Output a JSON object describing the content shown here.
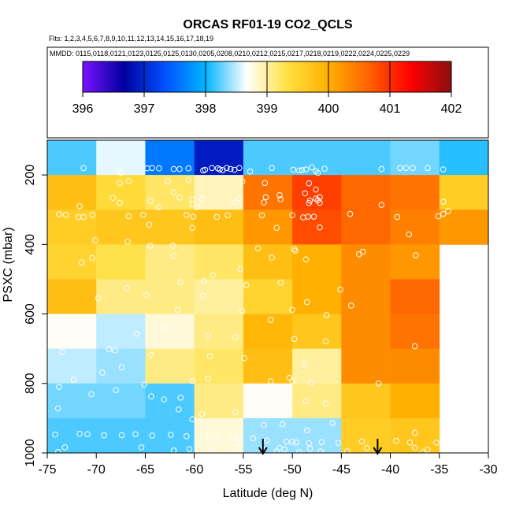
{
  "chart_data": {
    "type": "heatmap",
    "title": "ORCAS RF01-19 CO2_QCLS",
    "flights_label": "Flts: 1,2,3,4,5,6,7,8,9,10,11,12,13,14,15,16,17,18,19",
    "dates_label": "MMDD: 0115,0118,0121,0123,0125,0125,0130,0205,0208,0210,0212,0215,0217,0218,0219,0222,0224,0225,0229",
    "xlabel": "Latitude (deg N)",
    "ylabel": "PSXC (mbar)",
    "xlim": [
      -75,
      -30
    ],
    "ylim": [
      1000,
      100
    ],
    "x_ticks": [
      -75,
      -70,
      -65,
      -60,
      -55,
      -50,
      -45,
      -40,
      -35,
      -30
    ],
    "x_tick_labels": [
      "-75",
      "-70",
      "-65",
      "-60",
      "-55",
      "-50",
      "-45",
      "-40",
      "-35",
      "-30"
    ],
    "y_ticks": [
      200,
      400,
      600,
      800,
      1000
    ],
    "y_tick_labels": [
      "200",
      "400",
      "600",
      "800",
      "1000"
    ],
    "colorbar": {
      "range": [
        396,
        402
      ],
      "ticks": [
        396,
        397,
        398,
        399,
        400,
        401,
        402
      ],
      "tick_labels": [
        "396",
        "397",
        "398",
        "399",
        "400",
        "401",
        "402"
      ],
      "colors": [
        "#7b12ff",
        "#0000a0",
        "#0050ff",
        "#00b4ff",
        "#ffffff",
        "#ffe040",
        "#ffb000",
        "#ff6000",
        "#ff0000",
        "#8b1010"
      ]
    },
    "lat_bins": [
      [
        -75,
        -70
      ],
      [
        -70,
        -65
      ],
      [
        -65,
        -60
      ],
      [
        -60,
        -55
      ],
      [
        -55,
        -50
      ],
      [
        -50,
        -45
      ],
      [
        -45,
        -40
      ],
      [
        -40,
        -35
      ],
      [
        -35,
        -30
      ]
    ],
    "pressure_bins": [
      [
        100,
        200
      ],
      [
        200,
        300
      ],
      [
        300,
        400
      ],
      [
        400,
        500
      ],
      [
        500,
        600
      ],
      [
        600,
        700
      ],
      [
        700,
        800
      ],
      [
        800,
        900
      ],
      [
        900,
        1000
      ]
    ],
    "grid_values": [
      [
        398.2,
        398.6,
        397.6,
        396.9,
        398.2,
        398.2,
        398.2,
        398.3,
        398.1
      ],
      [
        399.8,
        399.4,
        399.2,
        398.9,
        400.5,
        400.9,
        400.6,
        400.5,
        399.6
      ],
      [
        399.6,
        399.7,
        399.7,
        399.8,
        400.2,
        400.8,
        400.6,
        400.4,
        400.2
      ],
      [
        399.5,
        399.3,
        399.1,
        399.2,
        399.8,
        400.0,
        400.3,
        400.2,
        null
      ],
      [
        399.8,
        399.1,
        399.1,
        399.0,
        399.5,
        400.0,
        400.3,
        400.6,
        null
      ],
      [
        398.7,
        398.5,
        398.8,
        399.1,
        399.9,
        399.7,
        400.3,
        400.5,
        null
      ],
      [
        398.5,
        398.4,
        399.1,
        399.2,
        399.8,
        399.0,
        400.3,
        400.3,
        null
      ],
      [
        398.3,
        398.3,
        398.2,
        399.1,
        398.7,
        399.1,
        399.7,
        400.0,
        null
      ],
      [
        398.2,
        398.2,
        398.2,
        398.8,
        398.4,
        398.4,
        399.6,
        399.7,
        null
      ]
    ],
    "samples": [
      [
        -71.3,
        180
      ],
      [
        -67.7,
        186
      ],
      [
        -67.5,
        194
      ],
      [
        -64.8,
        181
      ],
      [
        -64.3,
        180
      ],
      [
        -63.6,
        181
      ],
      [
        -62.1,
        183
      ],
      [
        -61.5,
        183
      ],
      [
        -60.6,
        181
      ],
      [
        -59.1,
        187
      ],
      [
        -58.9,
        185
      ],
      [
        -58.2,
        180
      ],
      [
        -57.6,
        181
      ],
      [
        -57.4,
        184
      ],
      [
        -57.1,
        186
      ],
      [
        -56.7,
        180
      ],
      [
        -56.3,
        183
      ],
      [
        -55.9,
        185
      ],
      [
        -55.4,
        180
      ],
      [
        -54.3,
        190
      ],
      [
        -52.1,
        180
      ],
      [
        -49.9,
        185
      ],
      [
        -49.3,
        187
      ],
      [
        -49.0,
        186
      ],
      [
        -48.6,
        184
      ],
      [
        -48.0,
        178
      ],
      [
        -47.6,
        189
      ],
      [
        -47.4,
        194
      ],
      [
        -46.7,
        182
      ],
      [
        -40.9,
        183
      ],
      [
        -39.0,
        180
      ],
      [
        -38.4,
        180
      ],
      [
        -37.7,
        180
      ],
      [
        -36.2,
        180
      ],
      [
        -34.6,
        184
      ],
      [
        -67.6,
        223
      ],
      [
        -66.7,
        218
      ],
      [
        -62.7,
        218
      ],
      [
        -60.6,
        215
      ],
      [
        -55.1,
        219
      ],
      [
        -52.8,
        223
      ],
      [
        -48.3,
        224
      ],
      [
        -47.6,
        242
      ],
      [
        -62.1,
        250
      ],
      [
        -51.3,
        258
      ],
      [
        -48.7,
        253
      ],
      [
        -68.3,
        266
      ],
      [
        -61.5,
        265
      ],
      [
        -60.2,
        270
      ],
      [
        -59.2,
        269
      ],
      [
        -55.4,
        267
      ],
      [
        -52.7,
        264
      ],
      [
        -48.2,
        274
      ],
      [
        -47.6,
        268
      ],
      [
        -47.2,
        264
      ],
      [
        -71.7,
        290
      ],
      [
        -67.6,
        280
      ],
      [
        -64.5,
        275
      ],
      [
        -63.6,
        293
      ],
      [
        -60.2,
        284
      ],
      [
        -59.7,
        292
      ],
      [
        -55.8,
        279
      ],
      [
        -52.9,
        279
      ],
      [
        -51.2,
        270
      ],
      [
        -48.3,
        281
      ],
      [
        -47.4,
        273
      ],
      [
        -47.2,
        280
      ],
      [
        -40.9,
        286
      ],
      [
        -34.6,
        277
      ],
      [
        -73.8,
        313
      ],
      [
        -73.1,
        315
      ],
      [
        -71.8,
        321
      ],
      [
        -71.3,
        321
      ],
      [
        -70.4,
        315
      ],
      [
        -66.7,
        319
      ],
      [
        -65.2,
        315
      ],
      [
        -60.8,
        315
      ],
      [
        -60.1,
        320
      ],
      [
        -57.7,
        321
      ],
      [
        -56.6,
        316
      ],
      [
        -53.1,
        316
      ],
      [
        -50.0,
        316
      ],
      [
        -48.9,
        322
      ],
      [
        -48.4,
        320
      ],
      [
        -47.8,
        320
      ],
      [
        -44.1,
        312
      ],
      [
        -39.3,
        321
      ],
      [
        -35.1,
        319
      ],
      [
        -34.6,
        312
      ],
      [
        -34.1,
        304
      ],
      [
        -64.6,
        343
      ],
      [
        -60.2,
        352
      ],
      [
        -51.6,
        352
      ],
      [
        -47.2,
        351
      ],
      [
        -38.1,
        371
      ],
      [
        -70.1,
        388
      ],
      [
        -66.8,
        392
      ],
      [
        -64.5,
        404
      ],
      [
        -62.2,
        404
      ],
      [
        -53.5,
        411
      ],
      [
        -49.8,
        413
      ],
      [
        -49.7,
        418
      ],
      [
        -42.8,
        421
      ],
      [
        -37.4,
        431
      ],
      [
        -70.4,
        439
      ],
      [
        -62.1,
        433
      ],
      [
        -52.1,
        438
      ],
      [
        -48.6,
        443
      ],
      [
        -43.2,
        428
      ],
      [
        -71.5,
        452
      ],
      [
        -55.3,
        471
      ],
      [
        -58.1,
        489
      ],
      [
        -59.0,
        505
      ],
      [
        -51.2,
        510
      ],
      [
        -54.7,
        517
      ],
      [
        -66.9,
        526
      ],
      [
        -61.4,
        509
      ],
      [
        -45.1,
        530
      ],
      [
        -69.8,
        555
      ],
      [
        -64.9,
        546
      ],
      [
        -59.1,
        548
      ],
      [
        -48.5,
        566
      ],
      [
        -44.0,
        576
      ],
      [
        -61.7,
        588
      ],
      [
        -55.1,
        592
      ],
      [
        -50.0,
        588
      ],
      [
        -46.5,
        603
      ],
      [
        -52.2,
        617
      ],
      [
        -63.0,
        643
      ],
      [
        -74.0,
        646
      ],
      [
        -65.9,
        657
      ],
      [
        -58.6,
        662
      ],
      [
        -55.8,
        667
      ],
      [
        -49.8,
        672
      ],
      [
        -46.6,
        679
      ],
      [
        -37.5,
        693
      ],
      [
        -68.1,
        705
      ],
      [
        -73.5,
        710
      ],
      [
        -68.7,
        702
      ],
      [
        -64.4,
        718
      ],
      [
        -58.4,
        722
      ],
      [
        -54.9,
        727
      ],
      [
        -48.8,
        746
      ],
      [
        -69.4,
        769
      ],
      [
        -67.4,
        754
      ],
      [
        -72.3,
        789
      ],
      [
        -65.1,
        803
      ],
      [
        -60.2,
        793
      ],
      [
        -58.6,
        786
      ],
      [
        -52.2,
        794
      ],
      [
        -50.3,
        784
      ],
      [
        -50.0,
        793
      ],
      [
        -48.1,
        799
      ],
      [
        -41.2,
        800
      ],
      [
        -73.8,
        810
      ],
      [
        -68.0,
        819
      ],
      [
        -70.5,
        831
      ],
      [
        -64.4,
        837
      ],
      [
        -63.1,
        846
      ],
      [
        -61.4,
        841
      ],
      [
        -52.7,
        846
      ],
      [
        -51.4,
        841
      ],
      [
        -48.6,
        851
      ],
      [
        -46.6,
        858
      ],
      [
        -73.9,
        872
      ],
      [
        -61.6,
        875
      ],
      [
        -55.8,
        883
      ],
      [
        -59.2,
        888
      ],
      [
        -51.6,
        889
      ],
      [
        -60.2,
        903
      ],
      [
        -52.9,
        920
      ],
      [
        -51.0,
        918
      ],
      [
        -45.9,
        914
      ],
      [
        -48.5,
        935
      ],
      [
        -37.5,
        942
      ],
      [
        -74.2,
        947
      ],
      [
        -71.7,
        945
      ],
      [
        -70.9,
        946
      ],
      [
        -69.2,
        949
      ],
      [
        -67.4,
        949
      ],
      [
        -66.0,
        946
      ],
      [
        -64.3,
        950
      ],
      [
        -62.4,
        948
      ],
      [
        -60.8,
        952
      ],
      [
        -58.8,
        955
      ],
      [
        -57.9,
        957
      ],
      [
        -56.1,
        957
      ],
      [
        -55.5,
        960
      ],
      [
        -54.0,
        958
      ],
      [
        -52.6,
        964
      ],
      [
        -50.6,
        968
      ],
      [
        -50.0,
        968
      ],
      [
        -49.6,
        970
      ],
      [
        -48.3,
        972
      ],
      [
        -47.0,
        969
      ],
      [
        -45.3,
        971
      ],
      [
        -42.9,
        967
      ],
      [
        -39.4,
        965
      ],
      [
        -38.0,
        970
      ],
      [
        -35.3,
        970
      ],
      [
        -73.2,
        984
      ],
      [
        -65.4,
        984
      ],
      [
        -60.5,
        989
      ],
      [
        -55.6,
        985
      ],
      [
        -53.0,
        990
      ],
      [
        -51.3,
        985
      ],
      [
        -50.8,
        990
      ],
      [
        -48.2,
        988
      ],
      [
        -42.4,
        986
      ],
      [
        -37.5,
        985
      ],
      [
        -36.2,
        991
      ],
      [
        -73.9,
        997
      ],
      [
        -62.1,
        993
      ],
      [
        -58.3,
        994
      ],
      [
        -51.6,
        996
      ],
      [
        -49.3,
        998
      ],
      [
        -47.1,
        996
      ],
      [
        -44.4,
        995
      ],
      [
        -36.7,
        998
      ]
    ],
    "arrow_latitudes": [
      -53.0,
      -41.3
    ]
  }
}
